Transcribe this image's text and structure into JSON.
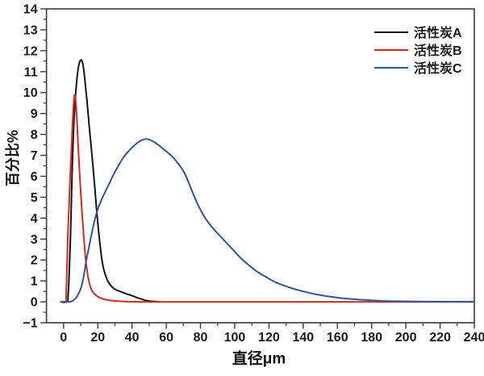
{
  "chart_data": {
    "type": "line",
    "title": "",
    "xlabel": "直径μm",
    "ylabel": "百分比%",
    "xlim": [
      -10,
      240
    ],
    "ylim": [
      -1,
      14
    ],
    "x_major_ticks": [
      0,
      20,
      40,
      60,
      80,
      100,
      120,
      140,
      160,
      180,
      200,
      220,
      240
    ],
    "x_minor_step": 10,
    "y_major_ticks": [
      -1,
      0,
      1,
      2,
      3,
      4,
      5,
      6,
      7,
      8,
      9,
      10,
      11,
      12,
      13,
      14
    ],
    "y_minor_step": 0.5,
    "grid": false,
    "legend_position": "top-right-inside",
    "frame_color": "#3a3a3a",
    "text_color": "#1a1a1a",
    "series": [
      {
        "name": "活性炭A",
        "color": "#141414",
        "points": [
          [
            -1.5,
            0
          ],
          [
            2.2,
            0
          ],
          [
            2.6,
            0.25
          ],
          [
            3,
            0.8
          ],
          [
            3.5,
            1.8
          ],
          [
            4,
            3.0
          ],
          [
            4.5,
            4.6
          ],
          [
            5,
            6.2
          ],
          [
            5.5,
            7.5
          ],
          [
            6,
            8.5
          ],
          [
            6.6,
            9.4
          ],
          [
            7.2,
            10.1
          ],
          [
            8,
            10.8
          ],
          [
            9,
            11.35
          ],
          [
            10,
            11.55
          ],
          [
            10.8,
            11.5
          ],
          [
            11.6,
            11.2
          ],
          [
            12.6,
            10.5
          ],
          [
            13.8,
            9.5
          ],
          [
            15,
            8.4
          ],
          [
            16.6,
            7.0
          ],
          [
            18,
            5.7
          ],
          [
            19,
            4.7
          ],
          [
            20.3,
            3.5
          ],
          [
            21.5,
            2.6
          ],
          [
            22.6,
            1.9
          ],
          [
            24,
            1.4
          ],
          [
            25.5,
            1.05
          ],
          [
            27.5,
            0.78
          ],
          [
            30,
            0.6
          ],
          [
            33.5,
            0.48
          ],
          [
            36,
            0.4
          ],
          [
            38,
            0.35
          ],
          [
            40.5,
            0.28
          ],
          [
            43,
            0.2
          ],
          [
            45.5,
            0.13
          ],
          [
            48,
            0.07
          ],
          [
            51,
            0.03
          ],
          [
            54,
            0.01
          ],
          [
            56,
            0
          ]
        ]
      },
      {
        "name": "活性炭B",
        "color": "#d42a20",
        "points": [
          [
            -1.5,
            0
          ],
          [
            1.2,
            0
          ],
          [
            1.6,
            0.5
          ],
          [
            2,
            1.7
          ],
          [
            2.5,
            3.2
          ],
          [
            3.1,
            4.4
          ],
          [
            3.7,
            5.7
          ],
          [
            4.4,
            7.0
          ],
          [
            5,
            8.1
          ],
          [
            5.6,
            9.1
          ],
          [
            6.1,
            9.7
          ],
          [
            6.5,
            9.9
          ],
          [
            7,
            9.7
          ],
          [
            7.6,
            9.0
          ],
          [
            8.2,
            8.0
          ],
          [
            8.8,
            7.0
          ],
          [
            9.6,
            5.8
          ],
          [
            10.7,
            4.4
          ],
          [
            11.9,
            3.0
          ],
          [
            13.1,
            1.9
          ],
          [
            14.4,
            1.15
          ],
          [
            16.2,
            0.6
          ],
          [
            18,
            0.38
          ],
          [
            20,
            0.25
          ],
          [
            22.5,
            0.15
          ],
          [
            25,
            0.1
          ],
          [
            28,
            0.06
          ],
          [
            32,
            0.03
          ],
          [
            36,
            0.015
          ],
          [
            40,
            0.005
          ],
          [
            50,
            0
          ],
          [
            100,
            0
          ],
          [
            170,
            0
          ],
          [
            240,
            0
          ]
        ]
      },
      {
        "name": "活性炭C",
        "color": "#3054a3",
        "points": [
          [
            -1.5,
            0
          ],
          [
            3.5,
            0
          ],
          [
            5,
            0.04
          ],
          [
            6.5,
            0.12
          ],
          [
            8,
            0.28
          ],
          [
            10,
            0.62
          ],
          [
            11.5,
            1.1
          ],
          [
            13.1,
            1.9
          ],
          [
            14.7,
            2.55
          ],
          [
            16.2,
            3.17
          ],
          [
            18,
            3.85
          ],
          [
            20.1,
            4.45
          ],
          [
            22,
            4.85
          ],
          [
            24,
            5.2
          ],
          [
            26.4,
            5.6
          ],
          [
            29,
            6.05
          ],
          [
            32,
            6.5
          ],
          [
            35,
            6.9
          ],
          [
            38,
            7.2
          ],
          [
            41,
            7.45
          ],
          [
            44,
            7.65
          ],
          [
            46.5,
            7.75
          ],
          [
            48.5,
            7.78
          ],
          [
            51,
            7.72
          ],
          [
            54,
            7.58
          ],
          [
            58,
            7.32
          ],
          [
            63,
            6.98
          ],
          [
            67,
            6.6
          ],
          [
            71,
            6.1
          ],
          [
            76,
            5.1
          ],
          [
            80,
            4.4
          ],
          [
            84,
            3.85
          ],
          [
            88,
            3.45
          ],
          [
            92,
            3.1
          ],
          [
            96,
            2.75
          ],
          [
            100,
            2.4
          ],
          [
            104,
            2.05
          ],
          [
            109,
            1.7
          ],
          [
            113,
            1.45
          ],
          [
            118,
            1.2
          ],
          [
            123,
            0.97
          ],
          [
            128,
            0.8
          ],
          [
            133,
            0.66
          ],
          [
            138,
            0.54
          ],
          [
            143,
            0.44
          ],
          [
            148,
            0.35
          ],
          [
            154,
            0.27
          ],
          [
            160,
            0.2
          ],
          [
            167,
            0.14
          ],
          [
            174,
            0.1
          ],
          [
            182,
            0.06
          ],
          [
            190,
            0.035
          ],
          [
            200,
            0.02
          ],
          [
            210,
            0.012
          ],
          [
            225,
            0.008
          ],
          [
            240,
            0.008
          ]
        ]
      }
    ]
  }
}
